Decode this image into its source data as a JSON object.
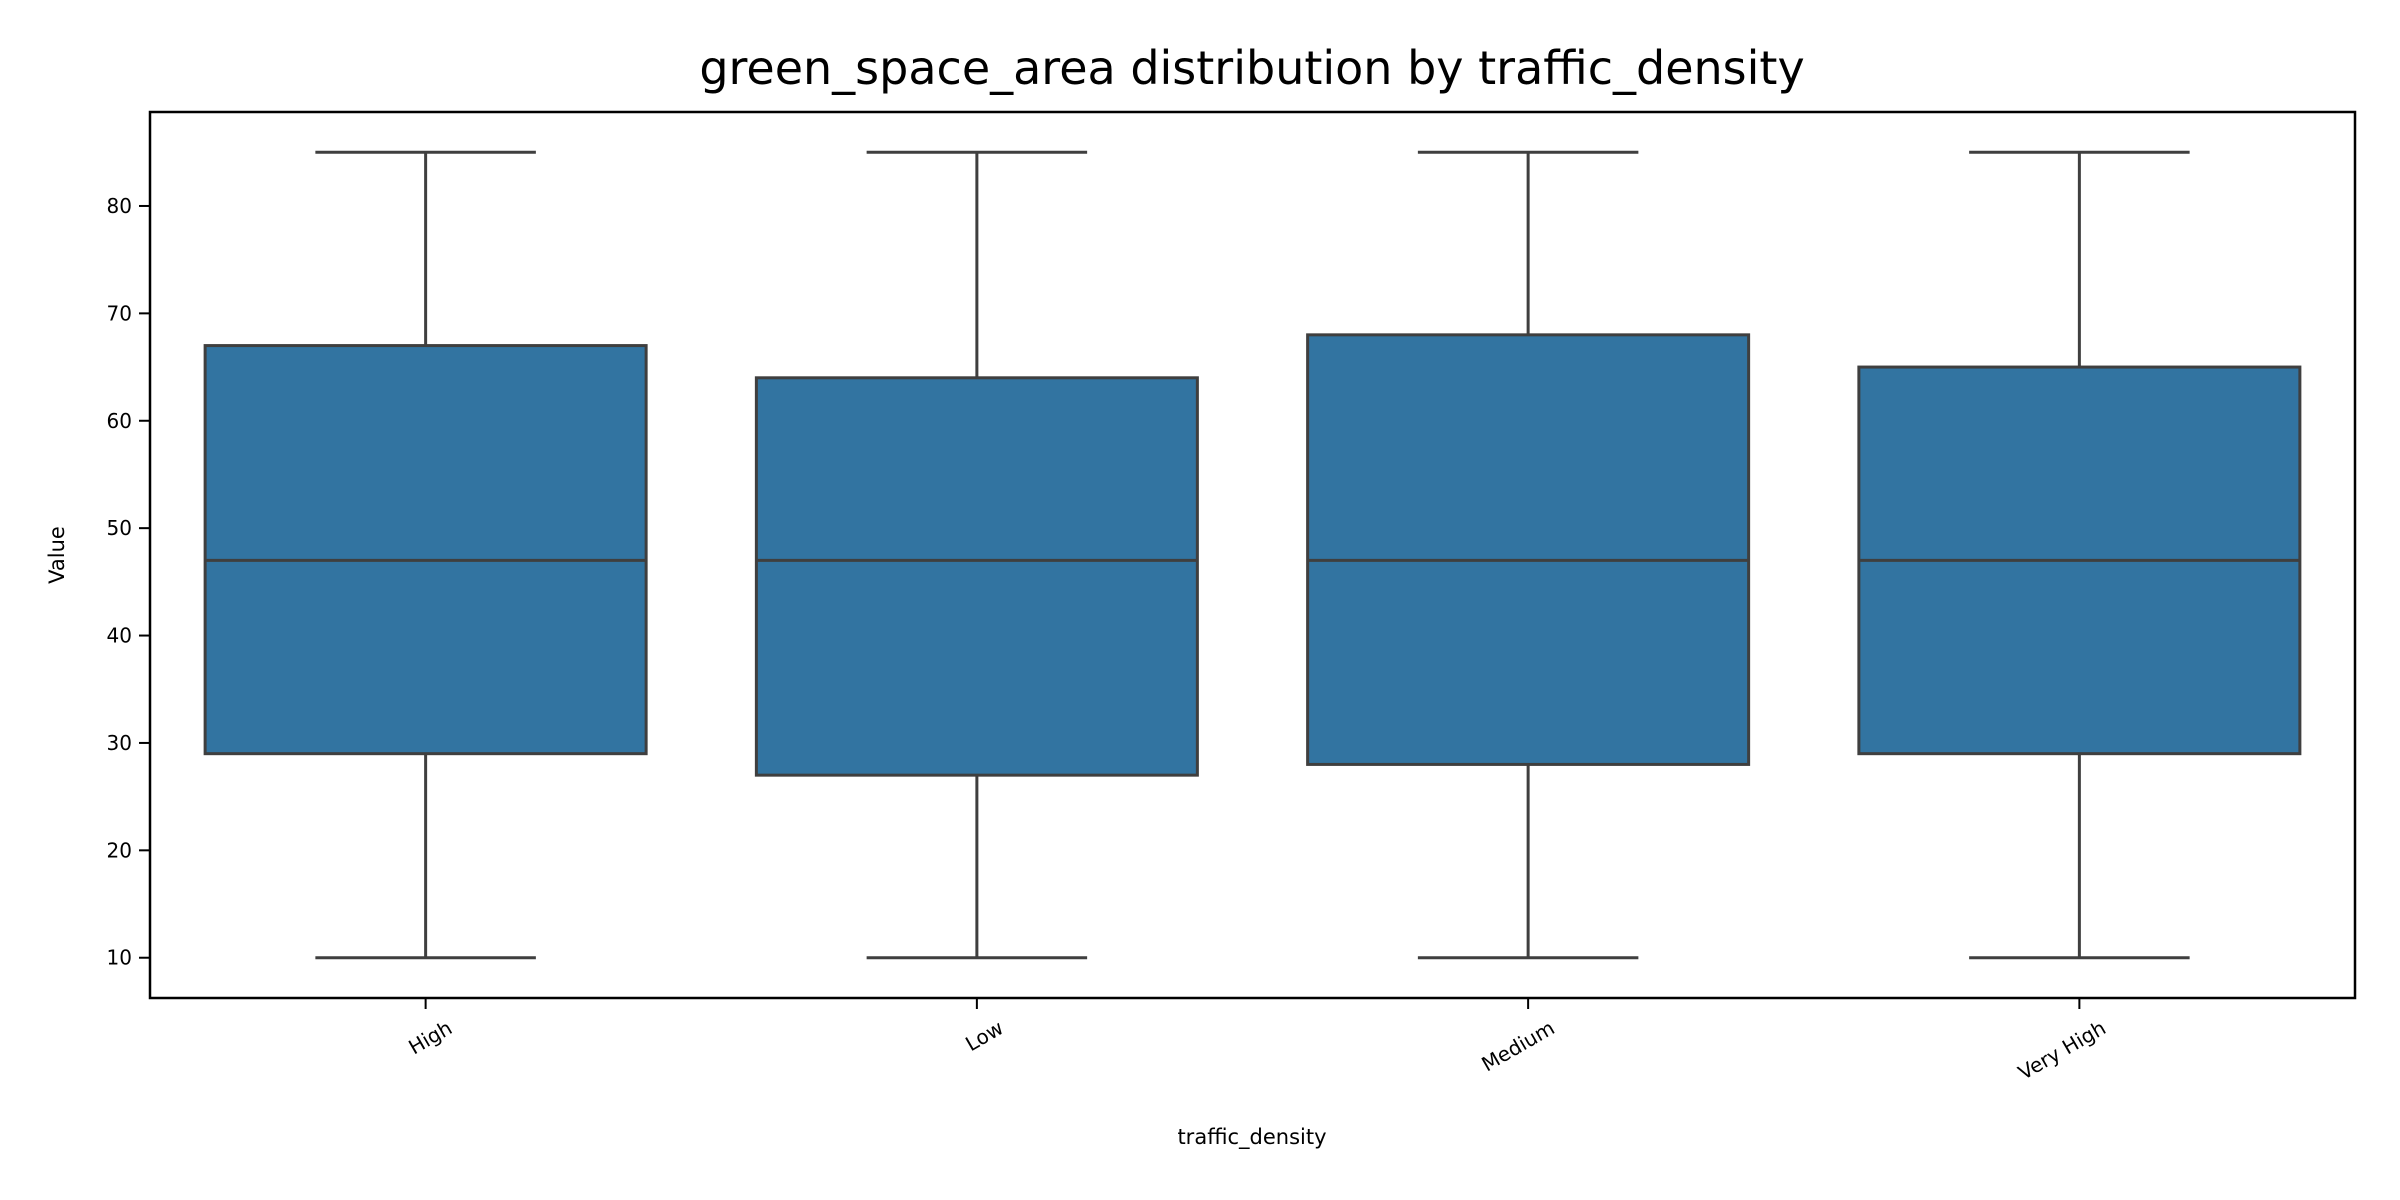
{
  "chart_data": {
    "type": "box",
    "title": "green_space_area distribution by traffic_density",
    "xlabel": "traffic_density",
    "ylabel": "Value",
    "categories": [
      "High",
      "Low",
      "Medium",
      "Very High"
    ],
    "boxes": [
      {
        "category": "High",
        "whisker_low": 10,
        "q1": 29,
        "median": 47,
        "q3": 67,
        "whisker_high": 85
      },
      {
        "category": "Low",
        "whisker_low": 10,
        "q1": 27,
        "median": 47,
        "q3": 64,
        "whisker_high": 85
      },
      {
        "category": "Medium",
        "whisker_low": 10,
        "q1": 28,
        "median": 47,
        "q3": 68,
        "whisker_high": 85
      },
      {
        "category": "Very High",
        "whisker_low": 10,
        "q1": 29,
        "median": 47,
        "q3": 65,
        "whisker_high": 85
      }
    ],
    "ylim": [
      6.25,
      88.75
    ],
    "yticks": [
      10,
      20,
      30,
      40,
      50,
      60,
      70,
      80
    ],
    "box_color": "#3274a1",
    "line_color": "#3f3f3f",
    "grid": false,
    "legend": "none"
  }
}
